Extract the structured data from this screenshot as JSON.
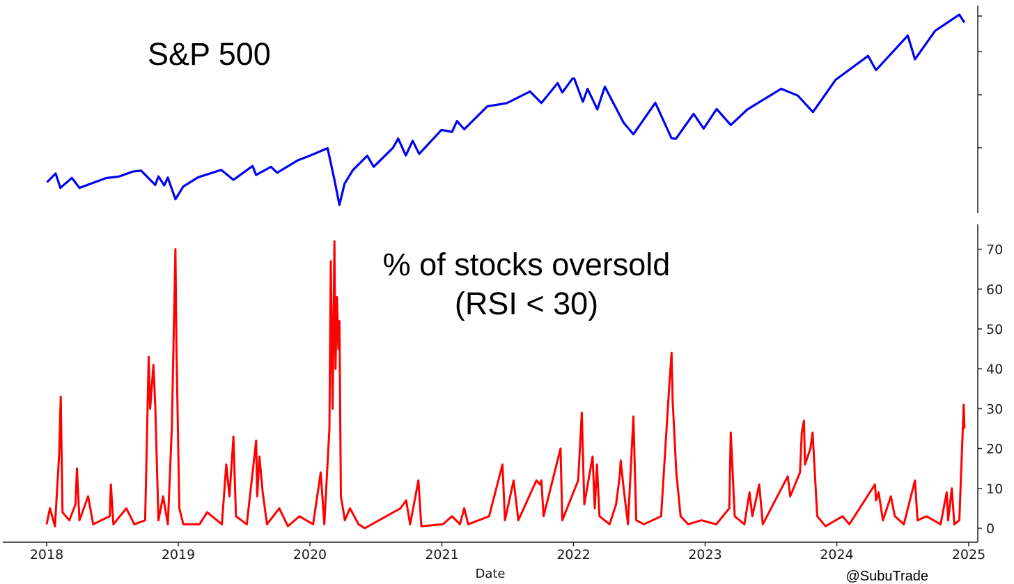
{
  "chart_data": [
    {
      "type": "line",
      "title": "S&P 500",
      "x_range": [
        "2018-01-01",
        "2025-01-01"
      ],
      "y_axis": "unlabeled",
      "color": "#0000ee",
      "series": [
        {
          "points": [
            [
              "2018-01-02",
              2695
            ],
            [
              "2018-01-26",
              2872
            ],
            [
              "2018-02-08",
              2581
            ],
            [
              "2018-03-12",
              2783
            ],
            [
              "2018-04-02",
              2582
            ],
            [
              "2018-06-15",
              2780
            ],
            [
              "2018-07-20",
              2810
            ],
            [
              "2018-08-29",
              2914
            ],
            [
              "2018-09-20",
              2930
            ],
            [
              "2018-10-29",
              2641
            ],
            [
              "2018-11-07",
              2814
            ],
            [
              "2018-11-23",
              2632
            ],
            [
              "2018-12-03",
              2790
            ],
            [
              "2018-12-24",
              2351
            ],
            [
              "2019-01-15",
              2610
            ],
            [
              "2019-02-25",
              2796
            ],
            [
              "2019-04-30",
              2946
            ],
            [
              "2019-06-03",
              2744
            ],
            [
              "2019-07-26",
              3025
            ],
            [
              "2019-08-05",
              2844
            ],
            [
              "2019-09-15",
              3007
            ],
            [
              "2019-10-02",
              2887
            ],
            [
              "2019-11-29",
              3141
            ],
            [
              "2019-12-31",
              3231
            ],
            [
              "2020-02-19",
              3386
            ],
            [
              "2020-03-09",
              2746
            ],
            [
              "2020-03-23",
              2237
            ],
            [
              "2020-04-06",
              2664
            ],
            [
              "2020-04-29",
              2940
            ],
            [
              "2020-06-08",
              3232
            ],
            [
              "2020-06-26",
              3009
            ],
            [
              "2020-08-18",
              3390
            ],
            [
              "2020-09-02",
              3580
            ],
            [
              "2020-09-23",
              3237
            ],
            [
              "2020-10-12",
              3534
            ],
            [
              "2020-10-30",
              3270
            ],
            [
              "2020-12-31",
              3756
            ],
            [
              "2021-01-29",
              3714
            ],
            [
              "2021-02-12",
              3935
            ],
            [
              "2021-03-04",
              3768
            ],
            [
              "2021-05-07",
              4232
            ],
            [
              "2021-06-30",
              4298
            ],
            [
              "2021-08-31",
              4523
            ],
            [
              "2021-09-02",
              4537
            ],
            [
              "2021-10-04",
              4300
            ],
            [
              "2021-11-18",
              4704
            ],
            [
              "2021-12-01",
              4513
            ],
            [
              "2021-12-29",
              4793
            ],
            [
              "2022-01-03",
              4796
            ],
            [
              "2022-01-27",
              4326
            ],
            [
              "2022-02-09",
              4587
            ],
            [
              "2022-03-08",
              4170
            ],
            [
              "2022-03-29",
              4631
            ],
            [
              "2022-05-20",
              3901
            ],
            [
              "2022-06-16",
              3666
            ],
            [
              "2022-08-16",
              4305
            ],
            [
              "2022-09-30",
              3585
            ],
            [
              "2022-10-12",
              3577
            ],
            [
              "2022-11-30",
              4080
            ],
            [
              "2022-12-28",
              3783
            ],
            [
              "2023-02-02",
              4179
            ],
            [
              "2023-03-13",
              3855
            ],
            [
              "2023-04-28",
              4169
            ],
            [
              "2023-07-31",
              4589
            ],
            [
              "2023-09-15",
              4450
            ],
            [
              "2023-10-27",
              4117
            ],
            [
              "2023-12-29",
              4770
            ],
            [
              "2024-03-28",
              5254
            ],
            [
              "2024-04-19",
              4967
            ],
            [
              "2024-07-16",
              5667
            ],
            [
              "2024-08-05",
              5186
            ],
            [
              "2024-09-30",
              5762
            ],
            [
              "2024-12-06",
              6090
            ],
            [
              "2024-12-20",
              5931
            ]
          ]
        }
      ]
    },
    {
      "type": "line",
      "title": "% of stocks oversold\n(RSI < 30)",
      "xlabel": "Date",
      "x_range": [
        "2018-01-01",
        "2025-01-01"
      ],
      "ylim": [
        -3,
        76
      ],
      "yticks": [
        0,
        10,
        20,
        30,
        40,
        50,
        60,
        70
      ],
      "xticks": [
        "2018",
        "2019",
        "2020",
        "2021",
        "2022",
        "2023",
        "2024",
        "2025"
      ],
      "color": "#ff0000",
      "series": [
        {
          "points": [
            [
              "2018-01-01",
              1
            ],
            [
              "2018-01-10",
              5
            ],
            [
              "2018-01-24",
              0.5
            ],
            [
              "2018-02-05",
              19
            ],
            [
              "2018-02-09",
              33
            ],
            [
              "2018-02-14",
              4
            ],
            [
              "2018-03-05",
              2
            ],
            [
              "2018-03-22",
              6
            ],
            [
              "2018-03-26",
              15
            ],
            [
              "2018-04-02",
              2
            ],
            [
              "2018-04-26",
              8
            ],
            [
              "2018-05-10",
              1
            ],
            [
              "2018-06-01",
              2
            ],
            [
              "2018-06-25",
              3
            ],
            [
              "2018-06-28",
              11
            ],
            [
              "2018-07-05",
              1
            ],
            [
              "2018-08-10",
              5
            ],
            [
              "2018-09-01",
              1
            ],
            [
              "2018-10-01",
              2
            ],
            [
              "2018-10-11",
              43
            ],
            [
              "2018-10-15",
              30
            ],
            [
              "2018-10-24",
              41
            ],
            [
              "2018-10-29",
              31
            ],
            [
              "2018-11-07",
              2
            ],
            [
              "2018-11-20",
              8
            ],
            [
              "2018-12-03",
              1
            ],
            [
              "2018-12-14",
              25
            ],
            [
              "2018-12-24",
              70
            ],
            [
              "2018-12-27",
              45
            ],
            [
              "2019-01-04",
              5
            ],
            [
              "2019-01-15",
              1
            ],
            [
              "2019-03-01",
              1
            ],
            [
              "2019-03-22",
              4
            ],
            [
              "2019-05-02",
              1
            ],
            [
              "2019-05-14",
              16
            ],
            [
              "2019-05-23",
              8
            ],
            [
              "2019-06-03",
              23
            ],
            [
              "2019-06-10",
              3
            ],
            [
              "2019-07-10",
              1
            ],
            [
              "2019-08-05",
              22
            ],
            [
              "2019-08-08",
              8
            ],
            [
              "2019-08-14",
              18
            ],
            [
              "2019-08-23",
              9
            ],
            [
              "2019-09-04",
              1
            ],
            [
              "2019-10-08",
              5
            ],
            [
              "2019-11-01",
              0.5
            ],
            [
              "2019-12-03",
              3
            ],
            [
              "2020-01-10",
              1
            ],
            [
              "2020-01-31",
              14
            ],
            [
              "2020-02-10",
              1
            ],
            [
              "2020-02-24",
              25
            ],
            [
              "2020-02-28",
              67
            ],
            [
              "2020-03-04",
              30
            ],
            [
              "2020-03-09",
              72
            ],
            [
              "2020-03-12",
              40
            ],
            [
              "2020-03-16",
              58
            ],
            [
              "2020-03-20",
              45
            ],
            [
              "2020-03-23",
              52
            ],
            [
              "2020-03-27",
              8
            ],
            [
              "2020-04-07",
              2
            ],
            [
              "2020-04-21",
              5
            ],
            [
              "2020-05-15",
              1
            ],
            [
              "2020-06-01",
              0
            ],
            [
              "2020-09-08",
              5
            ],
            [
              "2020-09-24",
              7
            ],
            [
              "2020-10-05",
              1
            ],
            [
              "2020-10-28",
              12
            ],
            [
              "2020-11-05",
              0.5
            ],
            [
              "2021-01-04",
              1
            ],
            [
              "2021-01-29",
              3
            ],
            [
              "2021-02-20",
              1
            ],
            [
              "2021-03-04",
              5
            ],
            [
              "2021-03-15",
              1
            ],
            [
              "2021-05-12",
              3
            ],
            [
              "2021-06-18",
              16
            ],
            [
              "2021-06-25",
              2
            ],
            [
              "2021-07-19",
              12
            ],
            [
              "2021-08-01",
              2
            ],
            [
              "2021-09-20",
              12
            ],
            [
              "2021-09-30",
              11
            ],
            [
              "2021-10-04",
              12
            ],
            [
              "2021-10-10",
              3
            ],
            [
              "2021-11-26",
              20
            ],
            [
              "2021-12-01",
              2
            ],
            [
              "2022-01-14",
              12
            ],
            [
              "2022-01-24",
              29
            ],
            [
              "2022-01-31",
              6
            ],
            [
              "2022-02-23",
              18
            ],
            [
              "2022-03-01",
              5
            ],
            [
              "2022-03-07",
              16
            ],
            [
              "2022-03-14",
              3
            ],
            [
              "2022-04-11",
              1
            ],
            [
              "2022-04-29",
              6
            ],
            [
              "2022-05-09",
              13
            ],
            [
              "2022-05-12",
              17
            ],
            [
              "2022-05-20",
              10
            ],
            [
              "2022-06-01",
              1
            ],
            [
              "2022-06-16",
              28
            ],
            [
              "2022-06-24",
              2
            ],
            [
              "2022-07-15",
              1
            ],
            [
              "2022-09-01",
              3
            ],
            [
              "2022-09-23",
              35
            ],
            [
              "2022-09-30",
              44
            ],
            [
              "2022-10-03",
              32
            ],
            [
              "2022-10-13",
              14
            ],
            [
              "2022-10-25",
              3
            ],
            [
              "2022-11-15",
              1
            ],
            [
              "2022-12-22",
              2
            ],
            [
              "2023-02-01",
              1
            ],
            [
              "2023-03-09",
              5
            ],
            [
              "2023-03-13",
              24
            ],
            [
              "2023-03-24",
              3
            ],
            [
              "2023-04-20",
              1
            ],
            [
              "2023-05-04",
              9
            ],
            [
              "2023-05-12",
              3
            ],
            [
              "2023-05-31",
              11
            ],
            [
              "2023-06-10",
              1
            ],
            [
              "2023-08-18",
              13
            ],
            [
              "2023-08-25",
              8
            ],
            [
              "2023-09-21",
              14
            ],
            [
              "2023-09-26",
              24
            ],
            [
              "2023-10-02",
              27
            ],
            [
              "2023-10-05",
              16
            ],
            [
              "2023-10-20",
              20
            ],
            [
              "2023-10-26",
              24
            ],
            [
              "2023-11-08",
              3
            ],
            [
              "2023-12-01",
              0.5
            ],
            [
              "2024-01-17",
              3
            ],
            [
              "2024-02-05",
              1
            ],
            [
              "2024-04-16",
              11
            ],
            [
              "2024-04-19",
              7
            ],
            [
              "2024-04-26",
              9
            ],
            [
              "2024-05-08",
              2
            ],
            [
              "2024-05-30",
              8
            ],
            [
              "2024-06-10",
              3
            ],
            [
              "2024-07-05",
              1
            ],
            [
              "2024-08-05",
              12
            ],
            [
              "2024-08-12",
              2
            ],
            [
              "2024-09-06",
              3
            ],
            [
              "2024-10-15",
              1
            ],
            [
              "2024-11-01",
              9
            ],
            [
              "2024-11-05",
              2
            ],
            [
              "2024-11-15",
              10
            ],
            [
              "2024-11-22",
              1
            ],
            [
              "2024-12-06",
              2
            ],
            [
              "2024-12-18",
              31
            ],
            [
              "2024-12-20",
              25
            ]
          ]
        }
      ]
    }
  ],
  "credit": "@SubuTrade"
}
